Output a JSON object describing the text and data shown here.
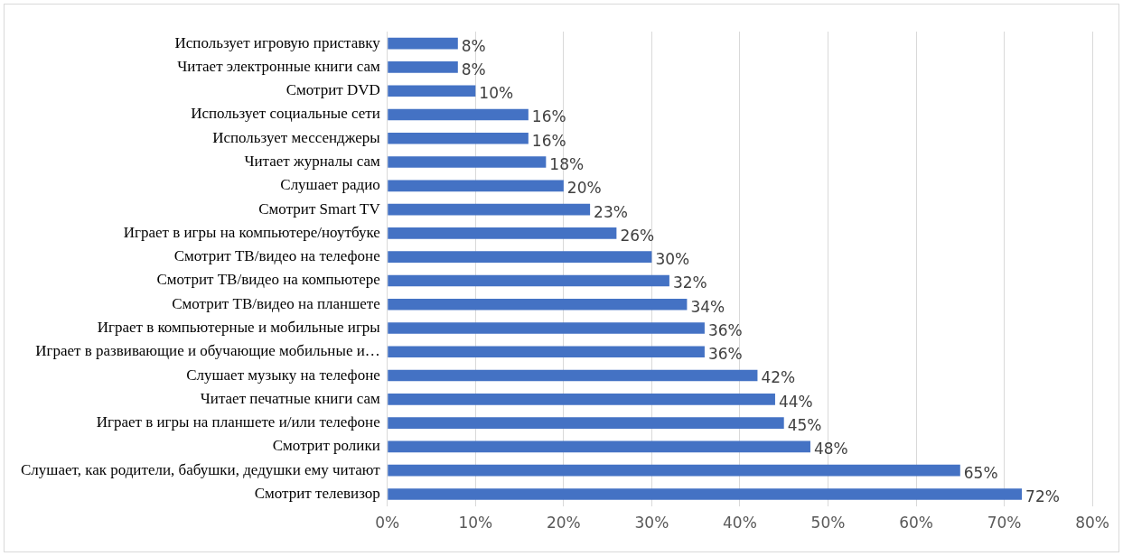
{
  "chart_data": {
    "type": "bar",
    "orientation": "horizontal",
    "color": "#4472c4",
    "grid": "x",
    "categories": [
      "Использует игровую приставку",
      "Читает электронные книги сам",
      "Смотрит DVD",
      "Использует социальные сети",
      "Использует мессенджеры",
      "Читает журналы сам",
      "Слушает радио",
      "Смотрит Smart TV",
      "Играет в игры на компьютере/ноутбуке",
      "Смотрит ТВ/видео на телефоне",
      "Смотрит ТВ/видео на компьютере",
      "Смотрит ТВ/видео на планшете",
      "Играет в компьютерные и мобильные игры",
      "Играет в развивающие и обучающие мобильные и…",
      "Слушает музыку на телефоне",
      "Читает печатные книги сам",
      "Играет в игры на планшете и/или телефоне",
      "Смотрит ролики",
      "Слушает, как родители, бабушки, дедушки ему читают",
      "Смотрит телевизор"
    ],
    "values": [
      8,
      8,
      10,
      16,
      16,
      18,
      20,
      23,
      26,
      30,
      32,
      34,
      36,
      36,
      42,
      44,
      45,
      48,
      65,
      72
    ],
    "value_labels": [
      "8%",
      "8%",
      "10%",
      "16%",
      "16%",
      "18%",
      "20%",
      "23%",
      "26%",
      "30%",
      "32%",
      "34%",
      "36%",
      "36%",
      "42%",
      "44%",
      "45%",
      "48%",
      "65%",
      "72%"
    ],
    "xlim": [
      0,
      80
    ],
    "xticks": [
      {
        "value": 0,
        "label": "0%"
      },
      {
        "value": 10,
        "label": "10%"
      },
      {
        "value": 20,
        "label": "20%"
      },
      {
        "value": 30,
        "label": "30%"
      },
      {
        "value": 40,
        "label": "40%"
      },
      {
        "value": 50,
        "label": "50%"
      },
      {
        "value": 60,
        "label": "60%"
      },
      {
        "value": 70,
        "label": "70%"
      },
      {
        "value": 80,
        "label": "80%"
      }
    ]
  }
}
